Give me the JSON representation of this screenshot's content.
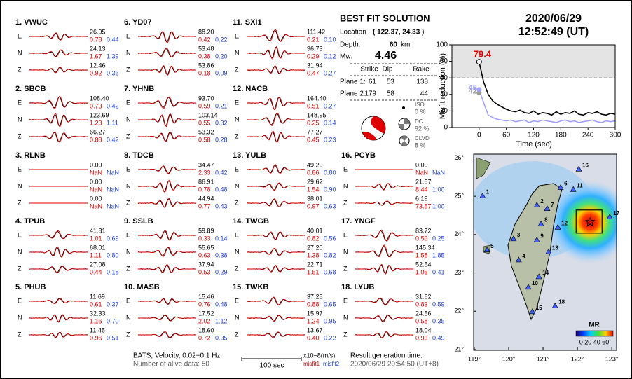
{
  "header": {
    "date": "2020/06/29",
    "time": "12:52:49  (UT)"
  },
  "stations": [
    {
      "name": "1.  VWUC",
      "traces": [
        {
          "component": "E",
          "amplitude": "26.95",
          "misfit1": "0.78",
          "misfit2": "0.44"
        },
        {
          "component": "N",
          "amplitude": "24.13",
          "misfit1": "1.67",
          "misfit2": "1.39"
        },
        {
          "component": "Z",
          "amplitude": "12.46",
          "misfit1": "0.92",
          "misfit2": "0.36"
        }
      ]
    },
    {
      "name": "2.  SBCB",
      "traces": [
        {
          "component": "E",
          "amplitude": "108.40",
          "misfit1": "0.73",
          "misfit2": "0.42"
        },
        {
          "component": "N",
          "amplitude": "123.69",
          "misfit1": "1.23",
          "misfit2": "1.11"
        },
        {
          "component": "Z",
          "amplitude": "66.27",
          "misfit1": "0.88",
          "misfit2": "0.42"
        }
      ]
    },
    {
      "name": "3.  RLNB",
      "traces": [
        {
          "component": "E",
          "amplitude": "0.00",
          "misfit1": "NaN",
          "misfit2": "NaN"
        },
        {
          "component": "N",
          "amplitude": "0.00",
          "misfit1": "NaN",
          "misfit2": "NaN"
        },
        {
          "component": "Z",
          "amplitude": "0.00",
          "misfit1": "NaN",
          "misfit2": "NaN"
        }
      ]
    },
    {
      "name": "4.  TPUB",
      "traces": [
        {
          "component": "E",
          "amplitude": "41.81",
          "misfit1": "1.01",
          "misfit2": "0.69"
        },
        {
          "component": "N",
          "amplitude": "68.01",
          "misfit1": "1.11",
          "misfit2": "0.80"
        },
        {
          "component": "Z",
          "amplitude": "27.08",
          "misfit1": "0.44",
          "misfit2": "0.18"
        }
      ]
    },
    {
      "name": "5.  PHUB",
      "traces": [
        {
          "component": "E",
          "amplitude": "11.69",
          "misfit1": "0.61",
          "misfit2": "0.37"
        },
        {
          "component": "N",
          "amplitude": "32.33",
          "misfit1": "1.16",
          "misfit2": "0.70"
        },
        {
          "component": "Z",
          "amplitude": "11.45",
          "misfit1": "0.96",
          "misfit2": "0.51"
        }
      ]
    },
    {
      "name": "6.  YD07",
      "traces": [
        {
          "component": "E",
          "amplitude": "88.20",
          "misfit1": "0.42",
          "misfit2": "0.22"
        },
        {
          "component": "N",
          "amplitude": "53.48",
          "misfit1": "0.38",
          "misfit2": "0.20"
        },
        {
          "component": "Z",
          "amplitude": "53.86",
          "misfit1": "0.18",
          "misfit2": "0.09"
        }
      ]
    },
    {
      "name": "7.  YHNB",
      "traces": [
        {
          "component": "E",
          "amplitude": "93.70",
          "misfit1": "0.59",
          "misfit2": "0.21"
        },
        {
          "component": "N",
          "amplitude": "103.14",
          "misfit1": "0.55",
          "misfit2": "0.32"
        },
        {
          "component": "Z",
          "amplitude": "53.32",
          "misfit1": "0.58",
          "misfit2": "0.28"
        }
      ]
    },
    {
      "name": "8.  TDCB",
      "traces": [
        {
          "component": "E",
          "amplitude": "34.47",
          "misfit1": "2.33",
          "misfit2": "0.42"
        },
        {
          "component": "N",
          "amplitude": "86.91",
          "misfit1": "0.78",
          "misfit2": "0.48"
        },
        {
          "component": "Z",
          "amplitude": "44.94",
          "misfit1": "0.77",
          "misfit2": "0.43"
        }
      ]
    },
    {
      "name": "9.  SSLB",
      "traces": [
        {
          "component": "E",
          "amplitude": "59.89",
          "misfit1": "0.33",
          "misfit2": "0.14"
        },
        {
          "component": "N",
          "amplitude": "55.65",
          "misfit1": "0.63",
          "misfit2": "0.38"
        },
        {
          "component": "Z",
          "amplitude": "37.94",
          "misfit1": "0.53",
          "misfit2": "0.29"
        }
      ]
    },
    {
      "name": "10.  MASB",
      "traces": [
        {
          "component": "E",
          "amplitude": "15.46",
          "misfit1": "0.76",
          "misfit2": "0.48"
        },
        {
          "component": "N",
          "amplitude": "17.52",
          "misfit1": "2.02",
          "misfit2": "1.12"
        },
        {
          "component": "Z",
          "amplitude": "18.60",
          "misfit1": "0.72",
          "misfit2": "0.35"
        }
      ]
    },
    {
      "name": "11.  SXI1",
      "traces": [
        {
          "component": "E",
          "amplitude": "111.42",
          "misfit1": "0.21",
          "misfit2": "0.10"
        },
        {
          "component": "N",
          "amplitude": "96.73",
          "misfit1": "0.29",
          "misfit2": "0.12"
        },
        {
          "component": "Z",
          "amplitude": "31.94",
          "misfit1": "0.47",
          "misfit2": "0.27"
        }
      ]
    },
    {
      "name": "12.  NACB",
      "traces": [
        {
          "component": "E",
          "amplitude": "164.40",
          "misfit1": "0.51",
          "misfit2": "0.27"
        },
        {
          "component": "N",
          "amplitude": "148.95",
          "misfit1": "0.25",
          "misfit2": "0.14"
        },
        {
          "component": "Z",
          "amplitude": "77.27",
          "misfit1": "0.45",
          "misfit2": "0.23"
        }
      ]
    },
    {
      "name": "13.  YULB",
      "traces": [
        {
          "component": "E",
          "amplitude": "49.20",
          "misfit1": "0.86",
          "misfit2": "0.80"
        },
        {
          "component": "N",
          "amplitude": "29.62",
          "misfit1": "1.54",
          "misfit2": "0.90"
        },
        {
          "component": "Z",
          "amplitude": "38.01",
          "misfit1": "0.97",
          "misfit2": "0.63"
        }
      ]
    },
    {
      "name": "14.  TWGB",
      "traces": [
        {
          "component": "E",
          "amplitude": "40.01",
          "misfit1": "0.82",
          "misfit2": "0.56"
        },
        {
          "component": "N",
          "amplitude": "27.20",
          "misfit1": "1.38",
          "misfit2": "0.82"
        },
        {
          "component": "Z",
          "amplitude": "22.71",
          "misfit1": "1.51",
          "misfit2": "0.68"
        }
      ]
    },
    {
      "name": "15.  TWKB",
      "traces": [
        {
          "component": "E",
          "amplitude": "37.28",
          "misfit1": "0.88",
          "misfit2": "0.65"
        },
        {
          "component": "N",
          "amplitude": "15.97",
          "misfit1": "1.24",
          "misfit2": "0.95"
        },
        {
          "component": "Z",
          "amplitude": "13.67",
          "misfit1": "0.40",
          "misfit2": "0.22"
        }
      ]
    },
    {
      "name": "16.  PCYB",
      "traces": [
        {
          "component": "E",
          "amplitude": "0.00",
          "misfit1": "NaN",
          "misfit2": "NaN"
        },
        {
          "component": "N",
          "amplitude": "21.57",
          "misfit1": "8.44",
          "misfit2": "1.00"
        },
        {
          "component": "Z",
          "amplitude": "6.19",
          "misfit1": "73.57",
          "misfit2": "1.00"
        }
      ]
    },
    {
      "name": "17.  YNGF",
      "traces": [
        {
          "component": "E",
          "amplitude": "83.72",
          "misfit1": "0.50",
          "misfit2": "0.25"
        },
        {
          "component": "N",
          "amplitude": "145.34",
          "misfit1": "1.58",
          "misfit2": "1.85"
        },
        {
          "component": "Z",
          "amplitude": "52.54",
          "misfit1": "1.05",
          "misfit2": "0.41"
        }
      ]
    },
    {
      "name": "18.  LYUB",
      "traces": [
        {
          "component": "E",
          "amplitude": "31.62",
          "misfit1": "0.83",
          "misfit2": "0.59"
        },
        {
          "component": "N",
          "amplitude": "24.56",
          "misfit1": "0.58",
          "misfit2": "0.35"
        },
        {
          "component": "Z",
          "amplitude": "18.04",
          "misfit1": "0.93",
          "misfit2": "0.49"
        }
      ]
    }
  ],
  "footer": {
    "filter": "BATS, Velocity, 0.02−0.1 Hz",
    "alive": "Number of alive data: 50",
    "scale_time": "100 sec",
    "scale_unit": "x10−8(m/s)",
    "misfit1": "misfit1",
    "misfit2": "misfit2",
    "result_label": "Result generation time:",
    "result_time": "2020/06/29 20:54:50  (UT+8)"
  },
  "solution": {
    "title": "BEST FIT SOLUTION",
    "location_label": "Location",
    "location": "( 122.37, 24.33 )",
    "lon": 122.37,
    "lat": 24.33,
    "depth_label": "Depth:",
    "depth": "60",
    "depth_unit": "km",
    "mw_label": "Mw:",
    "mw": "4.46",
    "columns": [
      "Strike",
      "Dip",
      "Rake"
    ],
    "planes": [
      {
        "label": "Plane 1:",
        "values": [
          61,
          53,
          138
        ]
      },
      {
        "label": "Plane 2:",
        "values": [
          179,
          58,
          44
        ]
      }
    ],
    "components": [
      {
        "label": "ISO",
        "value": "0  %"
      },
      {
        "label": "DC",
        "value": "92 %"
      },
      {
        "label": "CLVD",
        "value": "8  %"
      }
    ]
  },
  "chart_data": {
    "type": "line",
    "ylabel": "Misfit reduction (%)",
    "xlabel": "Time (sec)",
    "xlim": [
      -60,
      300
    ],
    "xticks": [
      0,
      60,
      120,
      180,
      240,
      300
    ],
    "ylim": [
      0,
      100
    ],
    "yticks": [
      0,
      20,
      40,
      60,
      80,
      100
    ],
    "threshold": 60,
    "x": [
      0,
      10,
      20,
      30,
      40,
      50,
      60,
      70,
      80,
      90,
      100,
      110,
      120,
      130,
      140,
      150,
      160,
      170,
      180,
      190,
      200,
      210,
      220,
      230,
      240,
      250,
      260,
      270,
      280,
      290,
      300
    ],
    "series": [
      {
        "color": "#000000",
        "values": [
          79.4,
          55,
          40,
          32,
          28,
          25,
          22,
          20,
          19,
          21,
          18,
          17,
          20,
          16,
          18,
          17,
          15,
          19,
          16,
          18,
          17,
          20,
          16,
          15,
          18,
          17,
          19,
          16,
          15,
          17,
          16
        ]
      },
      {
        "color": "#a0a0ff",
        "values": [
          46,
          30,
          15,
          12,
          10,
          9,
          8,
          9,
          7,
          8,
          9,
          6,
          8,
          7,
          9,
          8,
          7,
          6,
          8,
          9,
          7,
          8,
          6,
          7,
          8,
          9,
          7,
          6,
          8,
          7,
          8
        ]
      }
    ],
    "annotations": [
      {
        "value": 79.4,
        "color": "#e00000"
      },
      {
        "value": 42,
        "color": "#999999"
      },
      {
        "value": 46,
        "color": "#a0a0ff"
      }
    ]
  },
  "map": {
    "xlim": [
      118.98,
      123.14
    ],
    "ylim": [
      20.98,
      26.1
    ],
    "xticks": [
      {
        "value": 119,
        "label": "119°"
      },
      {
        "value": 120,
        "label": "120°"
      },
      {
        "value": 121,
        "label": "121°"
      },
      {
        "value": 122,
        "label": "122°"
      },
      {
        "value": 123,
        "label": "123°"
      }
    ],
    "yticks": [
      {
        "value": 21,
        "label": "21°"
      },
      {
        "value": 22,
        "label": "22°"
      },
      {
        "value": 23,
        "label": "23°"
      },
      {
        "value": 24,
        "label": "24°"
      },
      {
        "value": 25,
        "label": "25°"
      },
      {
        "value": 26,
        "label": "26°"
      }
    ],
    "stations": [
      {
        "label": "1",
        "lon": 119.24,
        "lat": 25.01
      },
      {
        "label": "2",
        "lon": 120.82,
        "lat": 24.77
      },
      {
        "label": "3",
        "lon": 120.14,
        "lat": 23.89
      },
      {
        "label": "4",
        "lon": 120.29,
        "lat": 23.34
      },
      {
        "label": "5",
        "lon": 119.37,
        "lat": 23.6
      },
      {
        "label": "6",
        "lon": 121.51,
        "lat": 25.23
      },
      {
        "label": "7",
        "lon": 121.12,
        "lat": 24.68
      },
      {
        "label": "8",
        "lon": 120.94,
        "lat": 24.28
      },
      {
        "label": "9",
        "lon": 120.82,
        "lat": 23.86
      },
      {
        "label": "10",
        "lon": 120.57,
        "lat": 22.63
      },
      {
        "label": "11",
        "lon": 121.88,
        "lat": 25.18
      },
      {
        "label": "12",
        "lon": 121.43,
        "lat": 24.19
      },
      {
        "label": "13",
        "lon": 121.16,
        "lat": 23.55
      },
      {
        "label": "14",
        "lon": 120.88,
        "lat": 22.9
      },
      {
        "label": "15",
        "lon": 120.69,
        "lat": 21.99
      },
      {
        "label": "16",
        "lon": 122.04,
        "lat": 25.71
      },
      {
        "label": "17",
        "lon": 122.94,
        "lat": 24.46
      },
      {
        "label": "18",
        "lon": 121.35,
        "lat": 22.14
      }
    ],
    "colorbar_title": "MR",
    "colorbar_ticks": "0 20 40 60"
  }
}
